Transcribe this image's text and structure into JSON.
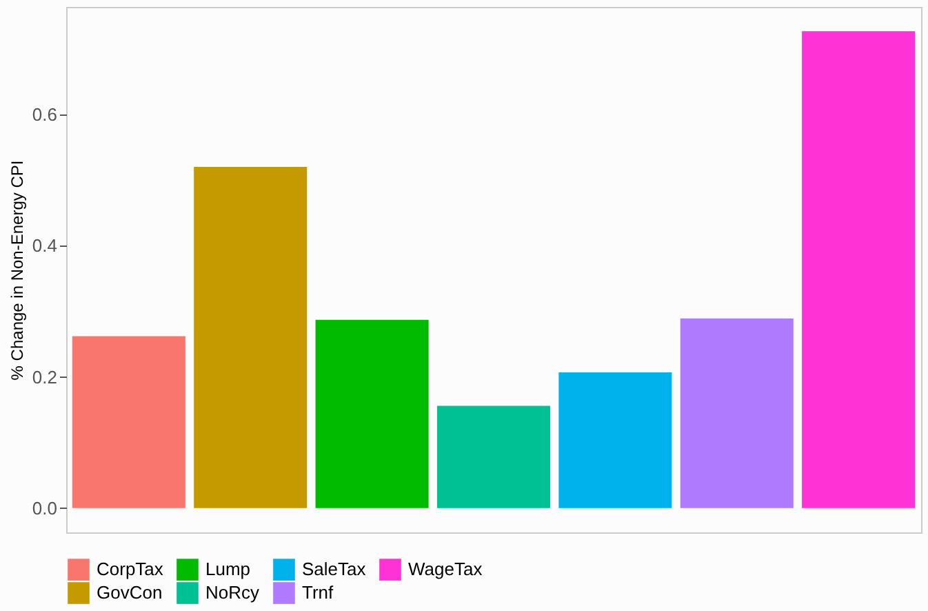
{
  "chart_data": {
    "type": "bar",
    "ylabel": "% Change in Non-Energy CPI",
    "categories": [
      null,
      null,
      null,
      null,
      null,
      null,
      null
    ],
    "stacked": true,
    "series": [
      {
        "name": "CorpTax",
        "color": "#f8766d",
        "values": [
          0.262,
          null,
          null,
          null,
          null,
          null,
          null
        ]
      },
      {
        "name": "GovCon",
        "color": "#c49a00",
        "values": [
          null,
          0.52,
          null,
          null,
          null,
          null,
          null
        ]
      },
      {
        "name": "Lump",
        "color": "#00bb00",
        "values": [
          null,
          null,
          0.287,
          null,
          null,
          null,
          null
        ]
      },
      {
        "name": "NoRcy",
        "color": "#00c193",
        "values": [
          null,
          null,
          null,
          0.156,
          null,
          null,
          null
        ]
      },
      {
        "name": "SaleTax",
        "color": "#00b2ec",
        "values": [
          null,
          null,
          null,
          null,
          0.207,
          null,
          null
        ]
      },
      {
        "name": "Trnf",
        "color": "#b07aff",
        "values": [
          null,
          null,
          null,
          null,
          null,
          0.289,
          null
        ]
      },
      {
        "name": "WageTax",
        "color": "#ff33d5",
        "values": [
          null,
          null,
          null,
          null,
          null,
          null,
          0.727
        ]
      }
    ],
    "ylim": [
      -0.037,
      0.764
    ],
    "yticks": [
      {
        "value": 0,
        "label": "0.0"
      },
      {
        "value": 0.2,
        "label": "0.2"
      },
      {
        "value": 0.4,
        "label": "0.4"
      },
      {
        "value": 0.6,
        "label": "0.6"
      }
    ],
    "tick_labels": "y",
    "grid": false,
    "legend": "bottom"
  }
}
